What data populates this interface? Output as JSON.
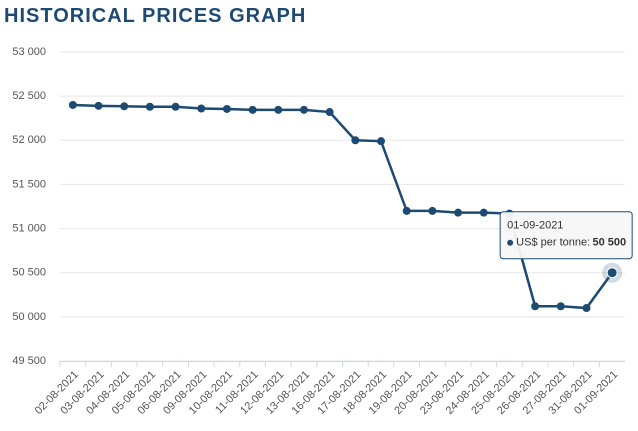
{
  "chart_data": {
    "type": "line",
    "title": "HISTORICAL PRICES GRAPH",
    "categories": [
      "02-08-2021",
      "03-08-2021",
      "04-08-2021",
      "05-08-2021",
      "06-08-2021",
      "09-08-2021",
      "10-08-2021",
      "11-08-2021",
      "12-08-2021",
      "13-08-2021",
      "16-08-2021",
      "17-08-2021",
      "18-08-2021",
      "19-08-2021",
      "20-08-2021",
      "23-08-2021",
      "24-08-2021",
      "25-08-2021",
      "26-08-2021",
      "27-08-2021",
      "31-08-2021",
      "01-09-2021"
    ],
    "series": [
      {
        "name": "US$ per tonne:",
        "color": "#1d4a73",
        "values": [
          52400,
          52390,
          52385,
          52380,
          52380,
          52360,
          52355,
          52345,
          52345,
          52345,
          52320,
          52000,
          51990,
          51200,
          51200,
          51180,
          51180,
          51170,
          50120,
          50120,
          50100,
          50500
        ],
        "value_labels": [
          null,
          null,
          null,
          null,
          null,
          null,
          null,
          null,
          null,
          null,
          null,
          null,
          null,
          null,
          null,
          null,
          null,
          null,
          null,
          null,
          null,
          "50 500"
        ]
      }
    ],
    "ylim": [
      49500,
      53000
    ],
    "yticks": [
      {
        "value": 49500,
        "label": "49 500"
      },
      {
        "value": 50000,
        "label": "50 000"
      },
      {
        "value": 50500,
        "label": "50 500"
      },
      {
        "value": 51000,
        "label": "51 000"
      },
      {
        "value": 51500,
        "label": "51 500"
      },
      {
        "value": 52000,
        "label": "52 000"
      },
      {
        "value": 52500,
        "label": "52 500"
      },
      {
        "value": 53000,
        "label": "53 000"
      }
    ],
    "grid": true
  }
}
